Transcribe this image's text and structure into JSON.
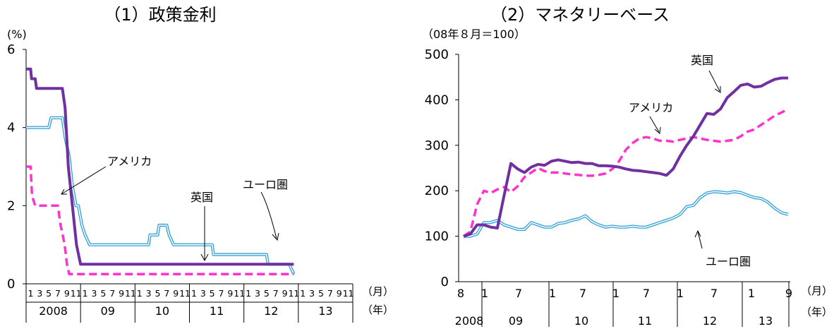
{
  "chart_data": [
    {
      "type": "line",
      "title": "（1）政策金利",
      "ylabel": "(%)",
      "ylim": [
        0,
        6
      ],
      "yticks": [
        "0",
        "2",
        "4",
        "6"
      ],
      "x_month_labels": [
        "1",
        "3",
        "5",
        "7",
        "9",
        "11",
        "1",
        "3",
        "5",
        "7",
        "9",
        "11",
        "1",
        "3",
        "5",
        "7",
        "9",
        "11",
        "1",
        "3",
        "5",
        "7",
        "9",
        "11",
        "1",
        "3",
        "5",
        "7",
        "9",
        "11",
        "1",
        "3",
        "5",
        "7",
        "9",
        "11"
      ],
      "x_year_labels": [
        "2008",
        "09",
        "10",
        "11",
        "12",
        "13"
      ],
      "x_unit_month": "（月）",
      "x_unit_year": "（年）",
      "series": [
        {
          "name": "英国",
          "color": "#7030a0",
          "style": "solid-thick",
          "points": [
            [
              0,
              5.5
            ],
            [
              1,
              5.5
            ],
            [
              1.2,
              5.25
            ],
            [
              2,
              5.25
            ],
            [
              2.3,
              5.0
            ],
            [
              3,
              5.0
            ],
            [
              4,
              5.0
            ],
            [
              5,
              5.0
            ],
            [
              6,
              5.0
            ],
            [
              7,
              5.0
            ],
            [
              8,
              5.0
            ],
            [
              8.6,
              4.5
            ],
            [
              9.3,
              3.0
            ],
            [
              10.2,
              2.0
            ],
            [
              11.1,
              1.0
            ],
            [
              12,
              0.5
            ],
            [
              13,
              0.5
            ],
            [
              20,
              0.5
            ],
            [
              30,
              0.5
            ],
            [
              40,
              0.5
            ],
            [
              50,
              0.5
            ],
            [
              59,
              0.5
            ]
          ]
        },
        {
          "name": "ユーロ圏",
          "color": "#2f9fd8",
          "style": "double",
          "points": [
            [
              0,
              4.0
            ],
            [
              1,
              4.0
            ],
            [
              2,
              4.0
            ],
            [
              3,
              4.0
            ],
            [
              4,
              4.0
            ],
            [
              5,
              4.0
            ],
            [
              5.5,
              4.25
            ],
            [
              6,
              4.25
            ],
            [
              7,
              4.25
            ],
            [
              8,
              4.25
            ],
            [
              8.6,
              3.75
            ],
            [
              9.5,
              3.25
            ],
            [
              10.2,
              2.5
            ],
            [
              11,
              2.0
            ],
            [
              11.5,
              2.0
            ],
            [
              12.3,
              1.5
            ],
            [
              13,
              1.25
            ],
            [
              14,
              1.0
            ],
            [
              15,
              1.0
            ],
            [
              20,
              1.0
            ],
            [
              25,
              1.0
            ],
            [
              27,
              1.0
            ],
            [
              27.3,
              1.25
            ],
            [
              29,
              1.25
            ],
            [
              29.3,
              1.5
            ],
            [
              31,
              1.5
            ],
            [
              31.5,
              1.25
            ],
            [
              32.5,
              1.0
            ],
            [
              40,
              1.0
            ],
            [
              41,
              1.0
            ],
            [
              41.3,
              0.75
            ],
            [
              53,
              0.75
            ],
            [
              53.3,
              0.5
            ],
            [
              58,
              0.5
            ],
            [
              59,
              0.25
            ]
          ]
        },
        {
          "name": "アメリカ",
          "color": "#ff33cc",
          "style": "dashed",
          "points": [
            [
              0,
              3.0
            ],
            [
              1,
              3.0
            ],
            [
              1.3,
              2.25
            ],
            [
              2,
              2.0
            ],
            [
              4,
              2.0
            ],
            [
              7,
              2.0
            ],
            [
              7.6,
              1.5
            ],
            [
              8.5,
              1.0
            ],
            [
              9,
              0.5
            ],
            [
              9.5,
              0.25
            ],
            [
              12,
              0.25
            ],
            [
              20,
              0.25
            ],
            [
              30,
              0.25
            ],
            [
              40,
              0.25
            ],
            [
              50,
              0.25
            ],
            [
              59,
              0.25
            ]
          ]
        }
      ],
      "annotations": [
        "アメリカ",
        "英国",
        "ユーロ圏"
      ]
    },
    {
      "type": "line",
      "title": "（2）マネタリーベース",
      "ylabel": "（08年８月＝100）",
      "ylim": [
        0,
        500
      ],
      "yticks": [
        "0",
        "100",
        "200",
        "300",
        "400",
        "500"
      ],
      "x_month_labels": [
        "8",
        "1",
        "7",
        "1",
        "7",
        "1",
        "7",
        "1",
        "7",
        "1",
        "9"
      ],
      "x_year_labels": [
        "2008",
        "09",
        "10",
        "11",
        "12",
        "13"
      ],
      "x_unit_month": "（月）",
      "x_unit_year": "（年）",
      "series": [
        {
          "name": "英国",
          "color": "#7030a0",
          "style": "solid-thick",
          "points": [
            [
              0,
              100
            ],
            [
              1,
              105
            ],
            [
              2,
              125
            ],
            [
              3,
              125
            ],
            [
              4,
              120
            ],
            [
              5,
              118
            ],
            [
              6,
              190
            ],
            [
              7,
              260
            ],
            [
              8,
              248
            ],
            [
              9,
              240
            ],
            [
              10,
              252
            ],
            [
              11,
              258
            ],
            [
              12,
              256
            ],
            [
              13,
              265
            ],
            [
              14,
              268
            ],
            [
              15,
              265
            ],
            [
              16,
              262
            ],
            [
              17,
              263
            ],
            [
              18,
              260
            ],
            [
              19,
              260
            ],
            [
              20,
              255
            ],
            [
              21,
              255
            ],
            [
              22,
              254
            ],
            [
              23,
              252
            ],
            [
              24,
              248
            ],
            [
              25,
              245
            ],
            [
              26,
              244
            ],
            [
              27,
              242
            ],
            [
              28,
              240
            ],
            [
              29,
              238
            ],
            [
              30,
              234
            ],
            [
              31,
              248
            ],
            [
              32,
              276
            ],
            [
              33,
              300
            ],
            [
              34,
              320
            ],
            [
              35,
              345
            ],
            [
              36,
              370
            ],
            [
              37,
              368
            ],
            [
              38,
              380
            ],
            [
              39,
              405
            ],
            [
              40,
              418
            ],
            [
              41,
              432
            ],
            [
              42,
              435
            ],
            [
              43,
              428
            ],
            [
              44,
              430
            ],
            [
              45,
              438
            ],
            [
              46,
              445
            ],
            [
              47,
              448
            ],
            [
              48,
              448
            ]
          ]
        },
        {
          "name": "アメリカ",
          "color": "#ff33cc",
          "style": "dashed",
          "points": [
            [
              0,
              100
            ],
            [
              1,
              110
            ],
            [
              2,
              170
            ],
            [
              3,
              200
            ],
            [
              4,
              195
            ],
            [
              5,
              203
            ],
            [
              6,
              208
            ],
            [
              7,
              197
            ],
            [
              8,
              210
            ],
            [
              9,
              230
            ],
            [
              10,
              240
            ],
            [
              11,
              250
            ],
            [
              12,
              243
            ],
            [
              13,
              240
            ],
            [
              14,
              240
            ],
            [
              15,
              238
            ],
            [
              16,
              236
            ],
            [
              17,
              235
            ],
            [
              18,
              233
            ],
            [
              19,
              233
            ],
            [
              20,
              235
            ],
            [
              21,
              238
            ],
            [
              22,
              248
            ],
            [
              23,
              265
            ],
            [
              24,
              290
            ],
            [
              25,
              305
            ],
            [
              26,
              315
            ],
            [
              27,
              318
            ],
            [
              28,
              315
            ],
            [
              29,
              310
            ],
            [
              30,
              310
            ],
            [
              31,
              308
            ],
            [
              32,
              312
            ],
            [
              33,
              315
            ],
            [
              34,
              318
            ],
            [
              35,
              315
            ],
            [
              36,
              312
            ],
            [
              37,
              310
            ],
            [
              38,
              308
            ],
            [
              39,
              310
            ],
            [
              40,
              312
            ],
            [
              41,
              320
            ],
            [
              42,
              330
            ],
            [
              43,
              335
            ],
            [
              44,
              345
            ],
            [
              45,
              355
            ],
            [
              46,
              365
            ],
            [
              47,
              372
            ],
            [
              48,
              380
            ]
          ]
        },
        {
          "name": "ユーロ圏",
          "color": "#2f9fd8",
          "style": "double",
          "points": [
            [
              0,
              100
            ],
            [
              1,
              100
            ],
            [
              2,
              105
            ],
            [
              3,
              130
            ],
            [
              4,
              130
            ],
            [
              5,
              135
            ],
            [
              6,
              125
            ],
            [
              7,
              120
            ],
            [
              8,
              115
            ],
            [
              9,
              115
            ],
            [
              10,
              130
            ],
            [
              11,
              125
            ],
            [
              12,
              120
            ],
            [
              13,
              120
            ],
            [
              14,
              128
            ],
            [
              15,
              130
            ],
            [
              16,
              135
            ],
            [
              17,
              138
            ],
            [
              18,
              145
            ],
            [
              19,
              132
            ],
            [
              20,
              125
            ],
            [
              21,
              120
            ],
            [
              22,
              122
            ],
            [
              23,
              120
            ],
            [
              24,
              120
            ],
            [
              25,
              122
            ],
            [
              26,
              120
            ],
            [
              27,
              120
            ],
            [
              28,
              125
            ],
            [
              29,
              130
            ],
            [
              30,
              135
            ],
            [
              31,
              140
            ],
            [
              32,
              148
            ],
            [
              33,
              165
            ],
            [
              34,
              168
            ],
            [
              35,
              185
            ],
            [
              36,
              195
            ],
            [
              37,
              198
            ],
            [
              38,
              197
            ],
            [
              39,
              195
            ],
            [
              40,
              198
            ],
            [
              41,
              196
            ],
            [
              42,
              190
            ],
            [
              43,
              185
            ],
            [
              44,
              183
            ],
            [
              45,
              175
            ],
            [
              46,
              162
            ],
            [
              47,
              152
            ],
            [
              48,
              148
            ]
          ]
        }
      ],
      "annotations": [
        "英国",
        "アメリカ",
        "ユーロ圏"
      ]
    }
  ]
}
